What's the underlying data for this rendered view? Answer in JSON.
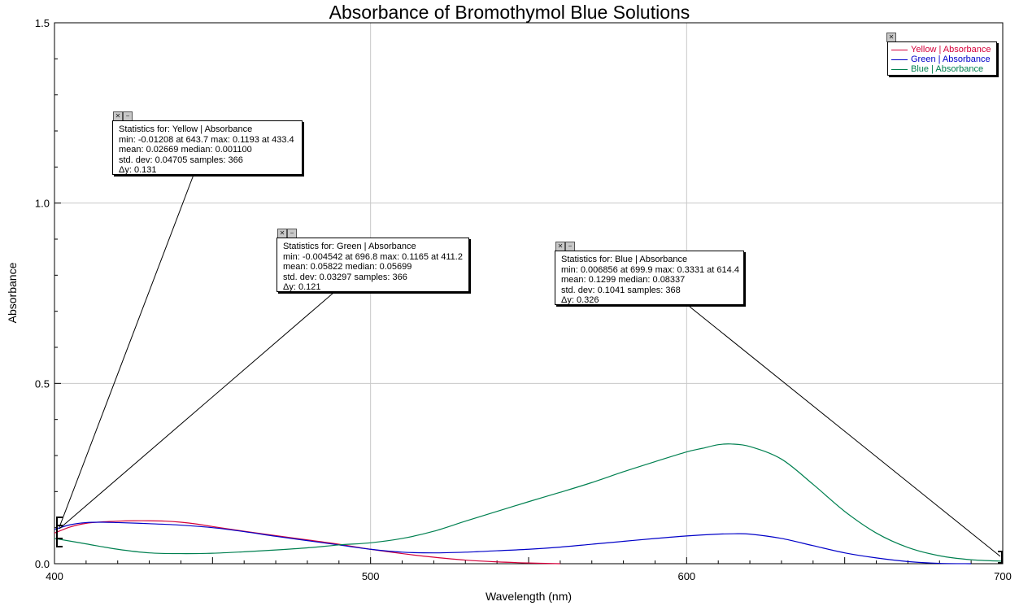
{
  "chart_data": {
    "type": "line",
    "title": "Absorbance of Bromothymol Blue Solutions",
    "xlabel": "Wavelength (nm)",
    "ylabel": "Absorbance",
    "xlim": [
      400,
      700
    ],
    "ylim": [
      0,
      1.5
    ],
    "x_ticks": [
      "400",
      "500",
      "600",
      "700"
    ],
    "y_ticks": [
      "0.0",
      "0.5",
      "1.0",
      "1.5"
    ],
    "grid": true,
    "legend_position": "top-right",
    "series": [
      {
        "name": "Yellow | Absorbance",
        "color": "#d4003a",
        "x": [
          400,
          405,
          410,
          415,
          420,
          425,
          430,
          435,
          440,
          445,
          450,
          460,
          470,
          480,
          490,
          500,
          510,
          520,
          530,
          540,
          550,
          560
        ],
        "y": [
          0.085,
          0.102,
          0.112,
          0.116,
          0.118,
          0.119,
          0.119,
          0.118,
          0.115,
          0.11,
          0.103,
          0.09,
          0.078,
          0.066,
          0.054,
          0.04,
          0.028,
          0.018,
          0.01,
          0.005,
          0.002,
          0.0
        ]
      },
      {
        "name": "Green | Absorbance",
        "color": "#0000c8",
        "x": [
          400,
          405,
          410,
          415,
          420,
          430,
          440,
          450,
          460,
          470,
          480,
          490,
          500,
          510,
          520,
          530,
          540,
          550,
          560,
          570,
          580,
          590,
          600,
          610,
          615,
          620,
          630,
          640,
          650,
          660,
          670,
          680,
          690
        ],
        "y": [
          0.095,
          0.108,
          0.114,
          0.115,
          0.114,
          0.111,
          0.107,
          0.1,
          0.089,
          0.076,
          0.064,
          0.052,
          0.04,
          0.032,
          0.03,
          0.032,
          0.036,
          0.04,
          0.046,
          0.054,
          0.062,
          0.07,
          0.077,
          0.082,
          0.083,
          0.082,
          0.07,
          0.05,
          0.03,
          0.016,
          0.006,
          0.001,
          0.0
        ]
      },
      {
        "name": "Blue | Absorbance",
        "color": "#008050",
        "x": [
          400,
          410,
          420,
          430,
          440,
          450,
          460,
          470,
          480,
          490,
          500,
          510,
          520,
          530,
          540,
          550,
          560,
          570,
          580,
          590,
          600,
          605,
          610,
          614,
          620,
          630,
          640,
          650,
          660,
          670,
          680,
          690,
          700
        ],
        "y": [
          0.07,
          0.055,
          0.04,
          0.03,
          0.028,
          0.029,
          0.033,
          0.038,
          0.044,
          0.052,
          0.058,
          0.07,
          0.09,
          0.118,
          0.145,
          0.172,
          0.198,
          0.225,
          0.255,
          0.283,
          0.31,
          0.32,
          0.33,
          0.332,
          0.325,
          0.29,
          0.22,
          0.145,
          0.085,
          0.045,
          0.022,
          0.011,
          0.007
        ]
      }
    ]
  },
  "stats_boxes": [
    {
      "title": "Statistics for: Yellow | Absorbance",
      "line1": "min: -0.01208 at 643.7 max: 0.1193 at 433.4",
      "line2": "mean: 0.02669 median: 0.001100",
      "line3": "std. dev: 0.04705 samples: 366",
      "dy_label": "y: 0.131"
    },
    {
      "title": "Statistics for: Green | Absorbance",
      "line1": "min: -0.004542 at 696.8 max: 0.1165 at 411.2",
      "line2": "mean: 0.05822 median: 0.05699",
      "line3": "std. dev: 0.03297 samples: 366",
      "dy_label": "y: 0.121"
    },
    {
      "title": "Statistics for: Blue | Absorbance",
      "line1": "min: 0.006856 at 699.9 max: 0.3331 at 614.4",
      "line2": "mean: 0.1299 median: 0.08337",
      "line3": "std. dev: 0.1041 samples: 368",
      "dy_label": "y: 0.326"
    }
  ],
  "icons": {
    "close": "close-icon",
    "minimize": "minimize-icon"
  }
}
